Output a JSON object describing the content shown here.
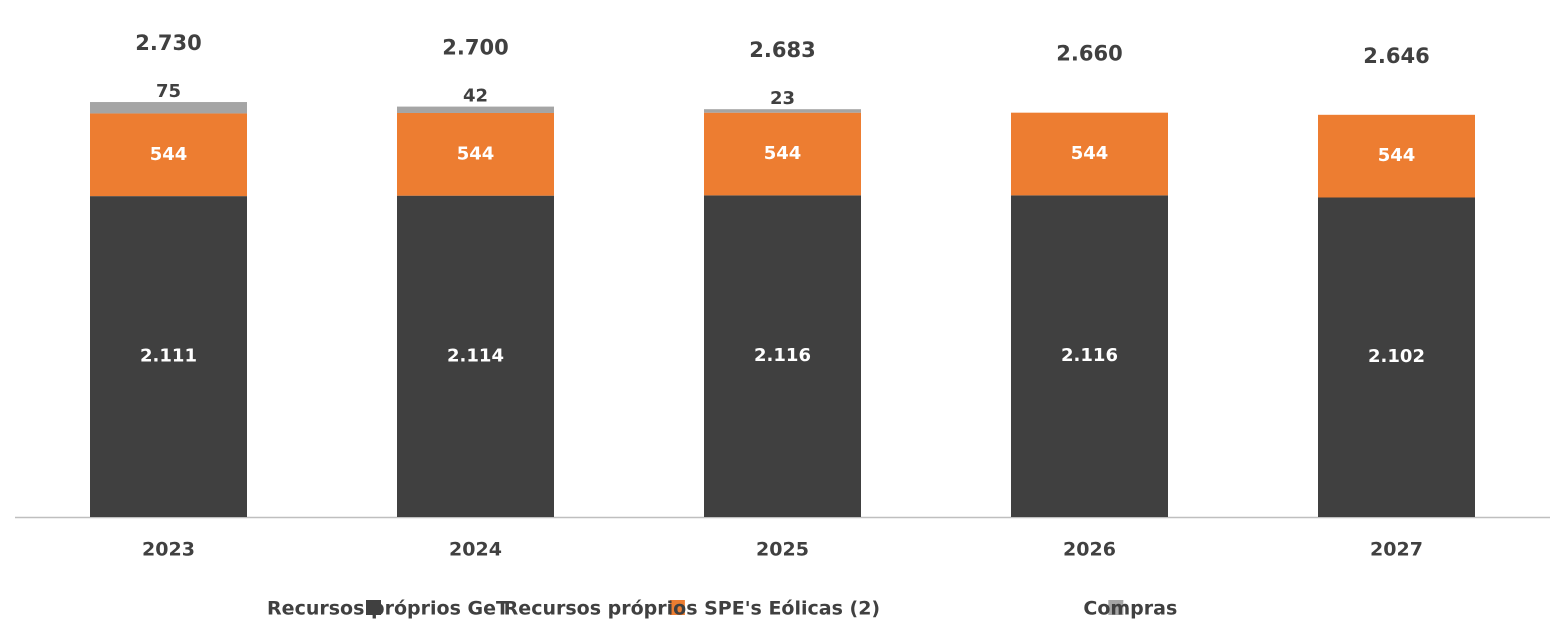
{
  "chart_data": {
    "type": "stacked_bar",
    "categories": [
      "2023",
      "2024",
      "2025",
      "2026",
      "2027"
    ],
    "series": [
      {
        "name": "Recursos próprios GeT",
        "color": "#404040",
        "values": [
          2111,
          2114,
          2116,
          2116,
          2102
        ],
        "value_labels": [
          "2.111",
          "2.114",
          "2.116",
          "2.116",
          "2.102"
        ]
      },
      {
        "name": "Recursos próprios SPE's Eólicas (2)",
        "color": "#ed7d31",
        "values": [
          544,
          544,
          544,
          544,
          544
        ]
      },
      {
        "name": "Compras",
        "color": "#a5a5a5",
        "values": [
          75,
          42,
          23,
          null,
          null
        ]
      }
    ],
    "totals": {
      "values": [
        2730,
        2700,
        2683,
        2660,
        2646
      ],
      "value_labels": [
        "2.730",
        "2.700",
        "2.683",
        "2.660",
        "2.646"
      ]
    },
    "ylim": [
      0,
      3000
    ],
    "legend": "bottom"
  }
}
